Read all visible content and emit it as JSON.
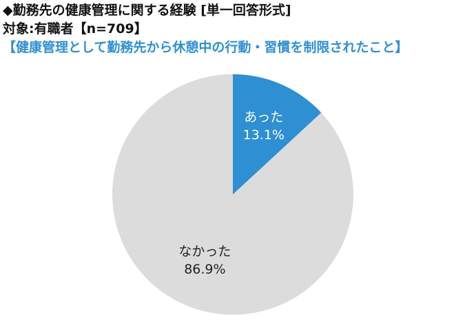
{
  "header": {
    "title": "◆勤務先の健康管理に関する経験 [単一回答形式]",
    "subtitle": "対象:有職者【n=709】",
    "question": "【健康管理として勤務先から休憩中の行動・習慣を制限されたこと】"
  },
  "colors": {
    "accent": "#2e8fd3",
    "remainder": "#dcdcdc",
    "question_text": "#2e8fd3",
    "label_on_accent": "#ffffff",
    "label_on_remainder": "#222222"
  },
  "chart_data": {
    "type": "pie",
    "title": "◆勤務先の健康管理に関する経験 [単一回答形式]",
    "start": "12 o'clock",
    "direction": "clockwise",
    "legend": "none",
    "slices": [
      {
        "name": "あった",
        "value": 13.1,
        "label": "13.1%"
      },
      {
        "name": "なかった",
        "value": 86.9,
        "label": "86.9%"
      }
    ]
  }
}
